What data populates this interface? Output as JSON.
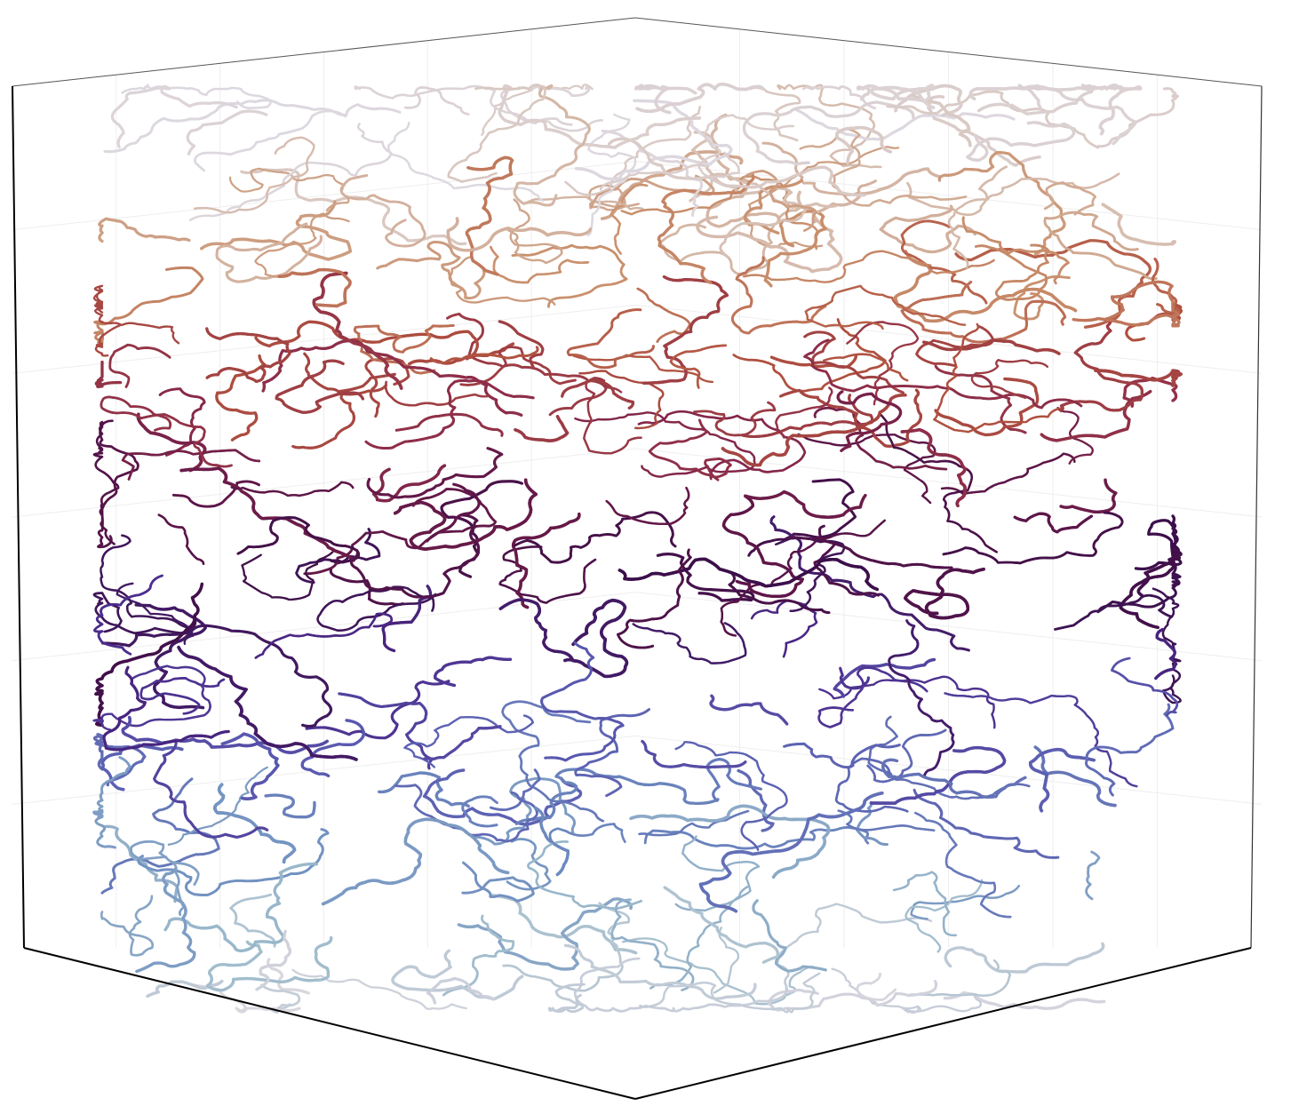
{
  "figure": {
    "description_colormap": "twilight",
    "background": "#ffffff",
    "box_line_color": "#000000",
    "grid_color": "#eeeeee",
    "band_colors": [
      "#ddd8e0",
      "#d8c3b8",
      "#c9906d",
      "#b0503f",
      "#8a2a4a",
      "#5e1648",
      "#3c0f4a",
      "#4b2a8a",
      "#5a5ab0",
      "#6f8fc0",
      "#9fbccc",
      "#d9d6de"
    ]
  }
}
